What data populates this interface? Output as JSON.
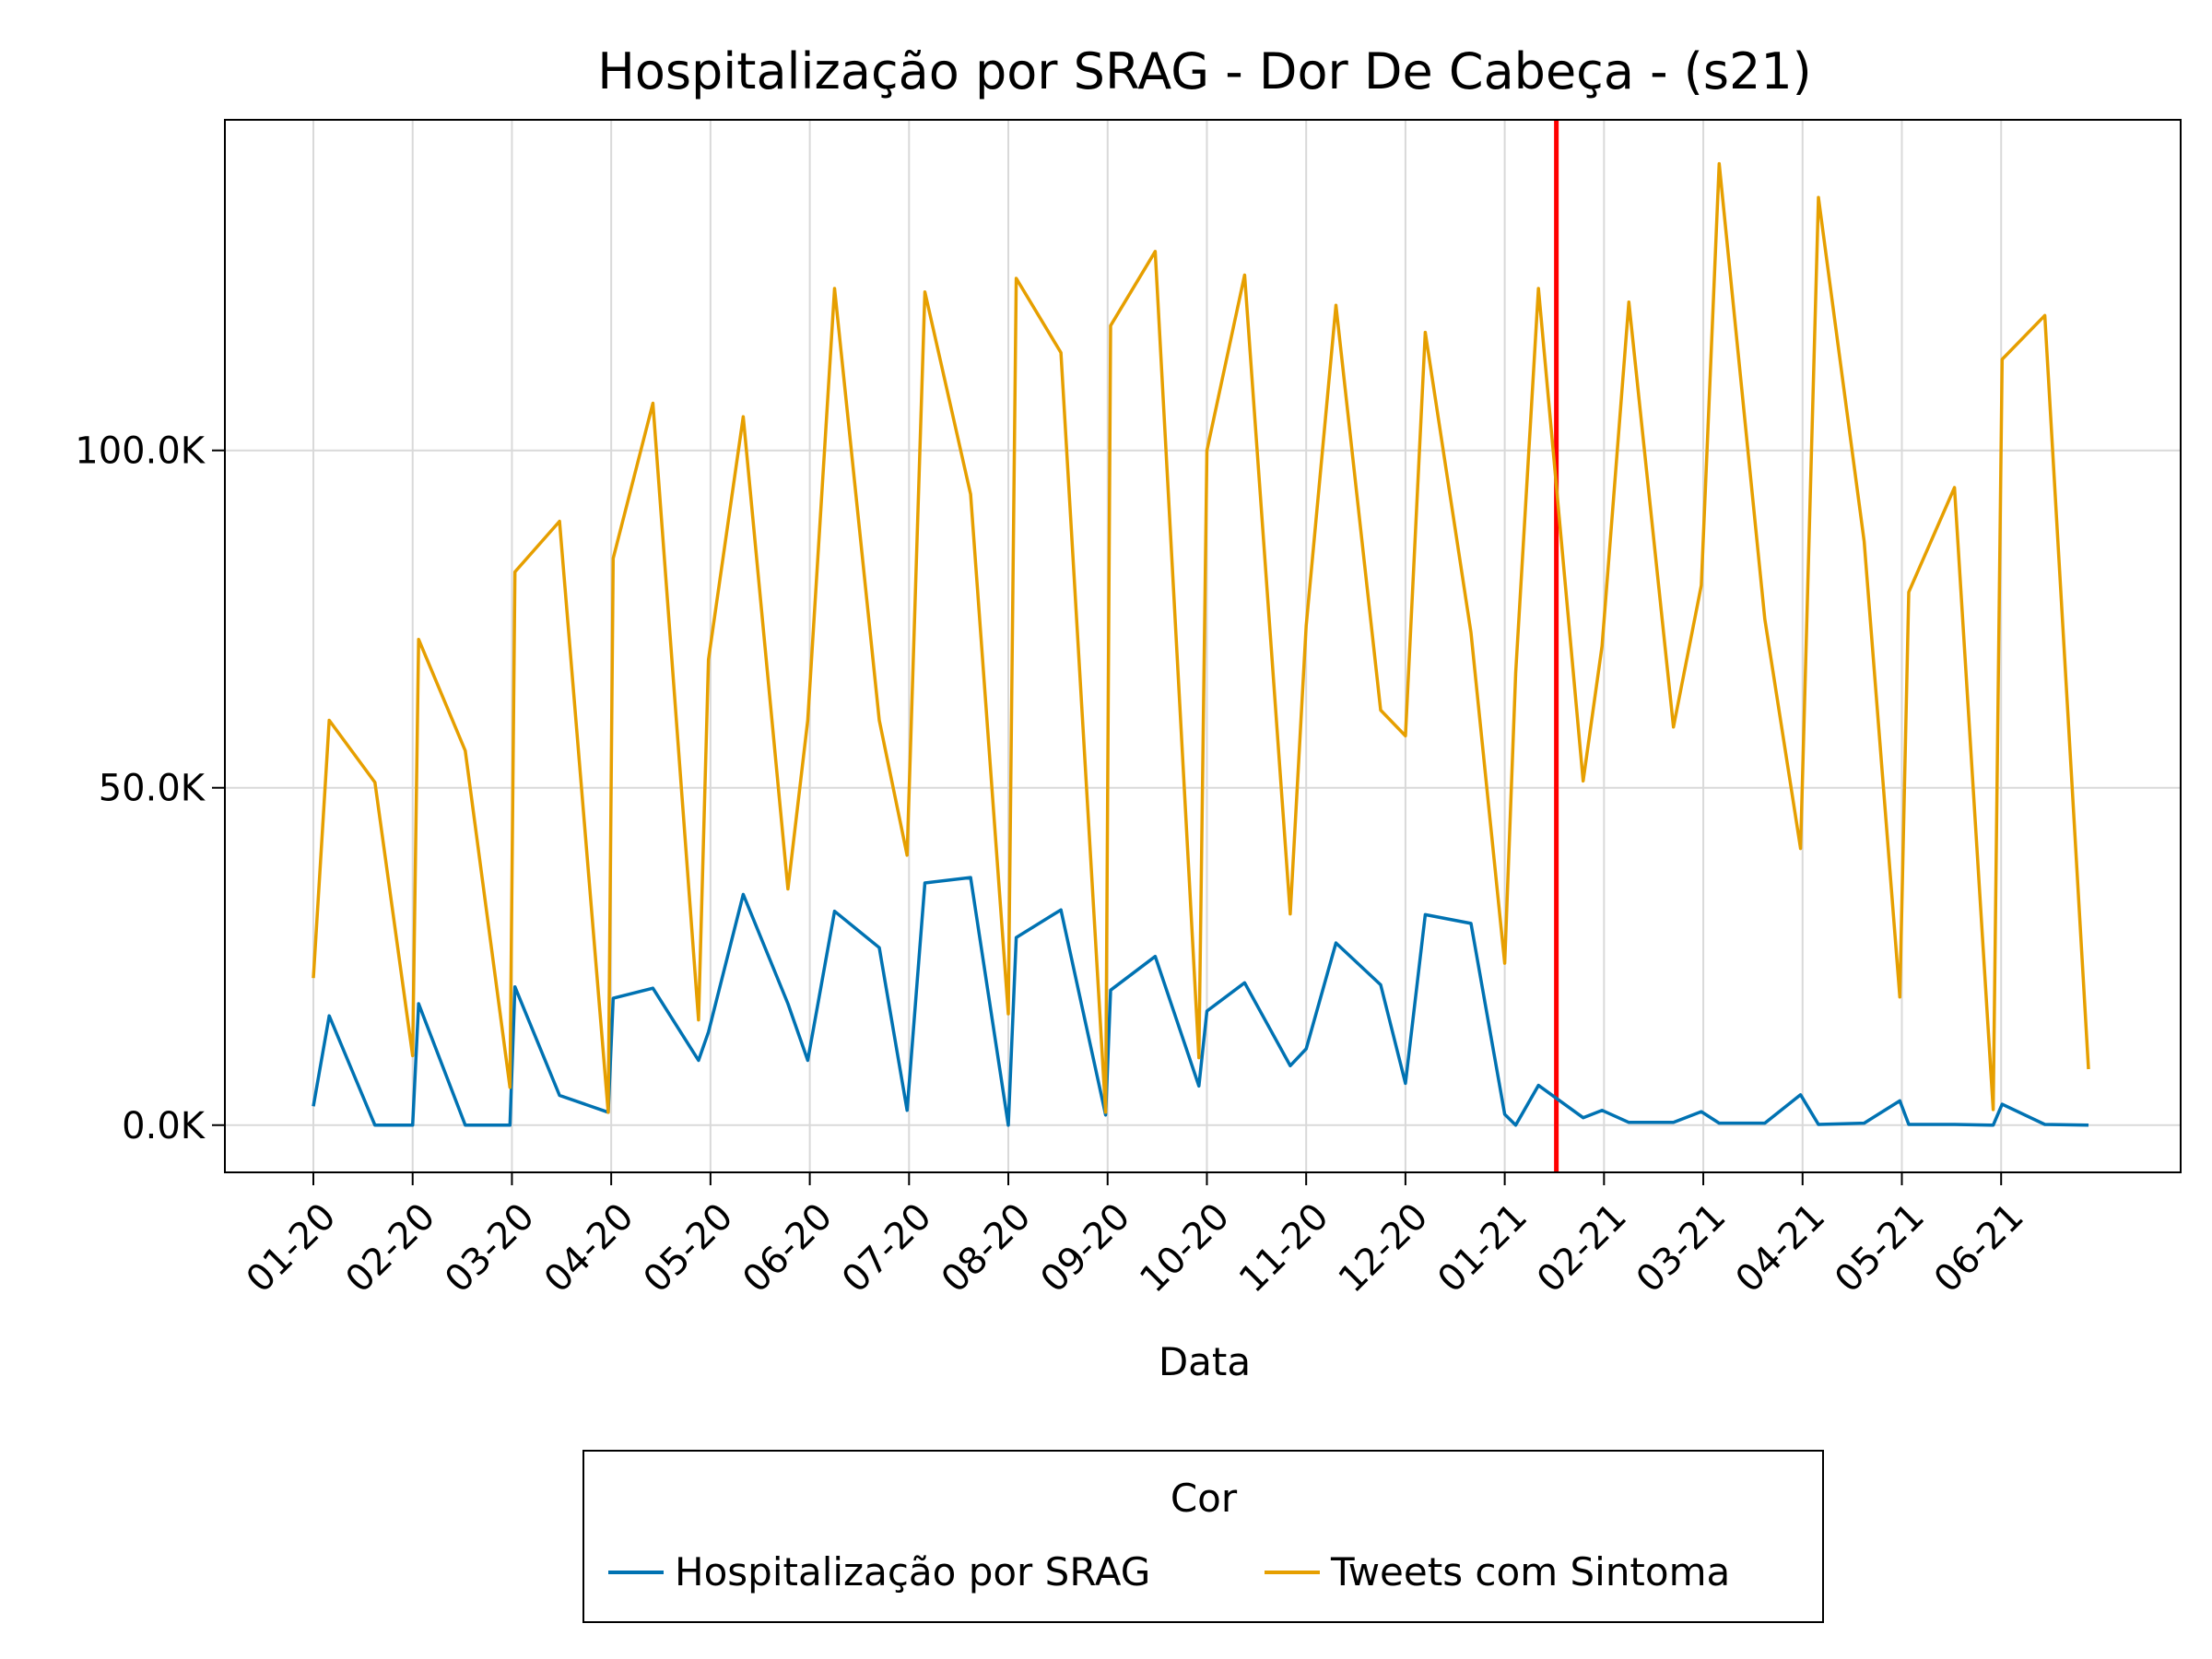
{
  "chart_data": {
    "type": "line",
    "title": "Hospitalização por SRAG - Dor De Cabeça - (s21)",
    "xlabel": "Data",
    "ylabel": "",
    "x_ticks": [
      "01-20",
      "02-20",
      "03-20",
      "04-20",
      "05-20",
      "06-20",
      "07-20",
      "08-20",
      "09-20",
      "10-20",
      "11-20",
      "12-20",
      "01-21",
      "02-21",
      "03-21",
      "04-21",
      "05-21",
      "06-21"
    ],
    "x_range": [
      0,
      17.88
    ],
    "ylim": [
      -7000,
      149000
    ],
    "y_ticks": [
      {
        "value": 0,
        "label": "0.0K"
      },
      {
        "value": 50000,
        "label": "50.0K"
      },
      {
        "value": 100000,
        "label": "100.0K"
      }
    ],
    "grid": true,
    "vertical_marker": {
      "x": 12.52,
      "color": "#ff0000"
    },
    "legend": {
      "title": "Cor",
      "position": "bottom"
    },
    "series": [
      {
        "name": "Hospitalização por SRAG",
        "color": "#0072b2",
        "points": [
          [
            0,
            2800
          ],
          [
            0.16,
            16200
          ],
          [
            0.62,
            0
          ],
          [
            1,
            0
          ],
          [
            1.06,
            18000
          ],
          [
            1.53,
            0
          ],
          [
            1.98,
            0
          ],
          [
            2.03,
            20500
          ],
          [
            2.48,
            4400
          ],
          [
            2.97,
            1900
          ],
          [
            3.02,
            18800
          ],
          [
            3.42,
            20300
          ],
          [
            3.88,
            9600
          ],
          [
            3.98,
            13800
          ],
          [
            4.33,
            34200
          ],
          [
            4.78,
            18000
          ],
          [
            4.98,
            9600
          ],
          [
            5.25,
            31700
          ],
          [
            5.7,
            26300
          ],
          [
            5.98,
            2200
          ],
          [
            6.16,
            35900
          ],
          [
            6.62,
            36700
          ],
          [
            7,
            0
          ],
          [
            7.08,
            27800
          ],
          [
            7.53,
            31900
          ],
          [
            7.98,
            1500
          ],
          [
            8.03,
            20000
          ],
          [
            8.48,
            25000
          ],
          [
            8.92,
            5800
          ],
          [
            9,
            16900
          ],
          [
            9.38,
            21100
          ],
          [
            9.84,
            8800
          ],
          [
            10,
            11300
          ],
          [
            10.3,
            27000
          ],
          [
            10.75,
            20800
          ],
          [
            11,
            6200
          ],
          [
            11.2,
            31200
          ],
          [
            11.66,
            29900
          ],
          [
            12,
            1600
          ],
          [
            12.11,
            0
          ],
          [
            12.34,
            5900
          ],
          [
            12.79,
            1100
          ],
          [
            12.98,
            2200
          ],
          [
            13.25,
            400
          ],
          [
            13.7,
            400
          ],
          [
            13.98,
            2000
          ],
          [
            14.16,
            300
          ],
          [
            14.62,
            300
          ],
          [
            14.98,
            4500
          ],
          [
            15.16,
            100
          ],
          [
            15.62,
            300
          ],
          [
            15.98,
            3600
          ],
          [
            16.07,
            100
          ],
          [
            16.53,
            100
          ],
          [
            16.92,
            0
          ],
          [
            17.01,
            3100
          ],
          [
            17.44,
            100
          ],
          [
            17.88,
            0
          ]
        ]
      },
      {
        "name": "Tweets com Sintoma",
        "color": "#e69f00",
        "points": [
          [
            0,
            21800
          ],
          [
            0.16,
            60000
          ],
          [
            0.62,
            50800
          ],
          [
            1,
            10300
          ],
          [
            1.06,
            72000
          ],
          [
            1.53,
            55500
          ],
          [
            1.98,
            5600
          ],
          [
            2.03,
            82000
          ],
          [
            2.48,
            89500
          ],
          [
            2.97,
            1900
          ],
          [
            3.02,
            84000
          ],
          [
            3.42,
            107000
          ],
          [
            3.88,
            15600
          ],
          [
            3.98,
            69000
          ],
          [
            4.33,
            105000
          ],
          [
            4.78,
            35000
          ],
          [
            4.98,
            60000
          ],
          [
            5.25,
            124000
          ],
          [
            5.7,
            60000
          ],
          [
            5.98,
            40000
          ],
          [
            6.16,
            123500
          ],
          [
            6.62,
            93500
          ],
          [
            7,
            16500
          ],
          [
            7.08,
            125500
          ],
          [
            7.53,
            114500
          ],
          [
            7.98,
            1900
          ],
          [
            8.03,
            118500
          ],
          [
            8.48,
            129500
          ],
          [
            8.92,
            10000
          ],
          [
            9,
            100000
          ],
          [
            9.38,
            126000
          ],
          [
            9.84,
            31300
          ],
          [
            10,
            74000
          ],
          [
            10.3,
            121500
          ],
          [
            10.75,
            61500
          ],
          [
            11,
            57700
          ],
          [
            11.2,
            117500
          ],
          [
            11.66,
            73000
          ],
          [
            12,
            24000
          ],
          [
            12.11,
            67000
          ],
          [
            12.34,
            124000
          ],
          [
            12.79,
            51000
          ],
          [
            12.98,
            71000
          ],
          [
            13.25,
            122000
          ],
          [
            13.7,
            59000
          ],
          [
            13.98,
            80000
          ],
          [
            14.16,
            142500
          ],
          [
            14.62,
            75000
          ],
          [
            14.98,
            41000
          ],
          [
            15.16,
            137500
          ],
          [
            15.62,
            86500
          ],
          [
            15.98,
            19000
          ],
          [
            16.07,
            79000
          ],
          [
            16.53,
            94500
          ],
          [
            16.92,
            2300
          ],
          [
            17.01,
            113500
          ],
          [
            17.44,
            120000
          ],
          [
            17.88,
            8300
          ]
        ]
      }
    ]
  }
}
